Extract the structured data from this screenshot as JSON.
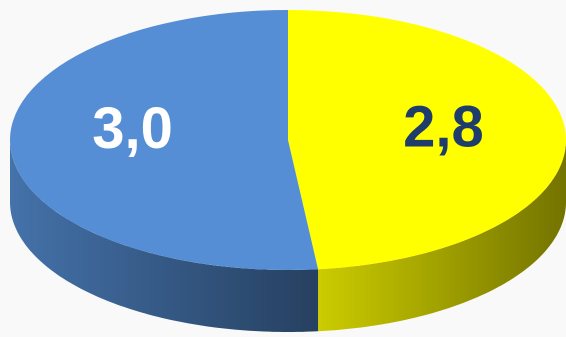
{
  "chart_data": {
    "type": "pie",
    "values": [
      2.8,
      3.0
    ],
    "value_labels": [
      "2,8",
      "3,0"
    ],
    "colors": [
      "#ffff00",
      "#558ed5"
    ],
    "label_colors": [
      "#1f3d6b",
      "#ffffff"
    ],
    "start_angle": 0,
    "direction": "clockwise",
    "three_d": true
  }
}
